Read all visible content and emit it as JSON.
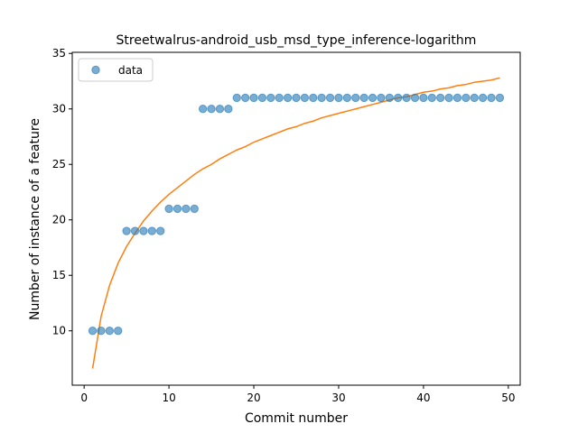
{
  "chart_data": {
    "type": "scatter",
    "title": "Streetwalrus-android_usb_msd_type_inference-logarithm",
    "xlabel": "Commit number",
    "ylabel": "Number of instance of a feature",
    "xlim": [
      -1.4,
      51.4
    ],
    "ylim": [
      5.1,
      35.1
    ],
    "xticks": [
      0,
      10,
      20,
      30,
      40,
      50
    ],
    "yticks": [
      10,
      15,
      20,
      25,
      30,
      35
    ],
    "grid": false,
    "legend": {
      "position": "top-left",
      "entries": [
        "data"
      ]
    },
    "series": [
      {
        "name": "data",
        "kind": "scatter",
        "color": "#1f77b4",
        "x": [
          1,
          2,
          3,
          4,
          5,
          6,
          7,
          8,
          9,
          10,
          11,
          12,
          13,
          14,
          15,
          16,
          17,
          18,
          19,
          20,
          21,
          22,
          23,
          24,
          25,
          26,
          27,
          28,
          29,
          30,
          31,
          32,
          33,
          34,
          35,
          36,
          37,
          38,
          39,
          40,
          41,
          42,
          43,
          44,
          45,
          46,
          47,
          48,
          49
        ],
        "y": [
          10,
          10,
          10,
          10,
          19,
          19,
          19,
          19,
          19,
          21,
          21,
          21,
          21,
          30,
          30,
          30,
          30,
          31,
          31,
          31,
          31,
          31,
          31,
          31,
          31,
          31,
          31,
          31,
          31,
          31,
          31,
          31,
          31,
          31,
          31,
          31,
          31,
          31,
          31,
          31,
          31,
          31,
          31,
          31,
          31,
          31,
          31,
          31,
          31
        ]
      },
      {
        "kind": "line",
        "color": "#ff7f0e",
        "x": [
          1,
          2,
          3,
          4,
          5,
          6,
          7,
          8,
          9,
          10,
          11,
          12,
          13,
          14,
          15,
          16,
          17,
          18,
          19,
          20,
          21,
          22,
          23,
          24,
          25,
          26,
          27,
          28,
          29,
          30,
          31,
          32,
          33,
          34,
          35,
          36,
          37,
          38,
          39,
          40,
          41,
          42,
          43,
          44,
          45,
          46,
          47,
          48,
          49
        ],
        "y": [
          6.6,
          11.3,
          14.1,
          16.1,
          17.6,
          18.8,
          19.9,
          20.8,
          21.6,
          22.3,
          22.9,
          23.5,
          24.1,
          24.6,
          25.0,
          25.5,
          25.9,
          26.3,
          26.6,
          27.0,
          27.3,
          27.6,
          27.9,
          28.2,
          28.4,
          28.7,
          28.9,
          29.2,
          29.4,
          29.6,
          29.8,
          30.0,
          30.2,
          30.4,
          30.6,
          30.8,
          31.0,
          31.1,
          31.3,
          31.5,
          31.6,
          31.8,
          31.9,
          32.1,
          32.2,
          32.4,
          32.5,
          32.6,
          32.8
        ]
      }
    ]
  }
}
